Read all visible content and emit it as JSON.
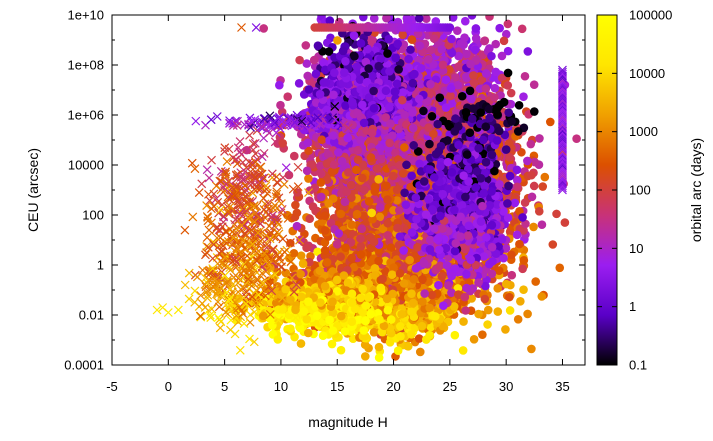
{
  "chart_data": {
    "type": "scatter",
    "title": "",
    "xlabel": "magnitude H",
    "ylabel": "CEU (arcsec)",
    "xlim": [
      -5,
      37
    ],
    "ylim_log10": [
      -4,
      10
    ],
    "y_scale": "log",
    "x_ticks": [
      "-5",
      "0",
      "5",
      "10",
      "15",
      "20",
      "25",
      "30",
      "35"
    ],
    "x_tick_values": [
      -5,
      0,
      5,
      10,
      15,
      20,
      25,
      30,
      35
    ],
    "y_ticks": [
      "0.0001",
      "0.01",
      "1",
      "100",
      "10000",
      "1e+06",
      "1e+08",
      "1e+10"
    ],
    "y_tick_values_log10": [
      -4,
      -2,
      0,
      2,
      4,
      6,
      8,
      10
    ],
    "grid": false,
    "colorbar": {
      "label": "orbital arc (days)",
      "scale": "log",
      "range_log10": [
        -1,
        5
      ],
      "ticks": [
        "0.1",
        "1",
        "10",
        "100",
        "1000",
        "10000",
        "100000"
      ],
      "tick_values_log10": [
        -1,
        0,
        1,
        2,
        3,
        4,
        5
      ],
      "palette": [
        "#000000",
        "#5a00c8",
        "#9b1ef0",
        "#c83278",
        "#dc5000",
        "#f0a000",
        "#ffe600",
        "#ffff00"
      ]
    },
    "series": [
      {
        "marker": "circle",
        "clusters": [
          {
            "x": 22.0,
            "y_log10": 4.2,
            "sx": 4.0,
            "sy": 2.5,
            "arc_log10": 1.8,
            "count": 5000
          },
          {
            "x": 17.5,
            "y_log10": 6.2,
            "sx": 2.0,
            "sy": 1.2,
            "arc_log10": 0.6,
            "count": 1500
          },
          {
            "x": 22.0,
            "y_log10": 1.5,
            "sx": 3.5,
            "sy": 1.6,
            "arc_log10": 2.3,
            "count": 2000
          },
          {
            "x": 18.5,
            "y_log10": -1.0,
            "sx": 3.0,
            "sy": 0.8,
            "arc_log10": 3.0,
            "count": 2000
          },
          {
            "x": 13.0,
            "y_log10": -1.6,
            "sx": 2.5,
            "sy": 0.5,
            "arc_log10": 4.0,
            "count": 600
          },
          {
            "x": 26.0,
            "y_log10": 2.0,
            "sx": 2.0,
            "sy": 1.3,
            "arc_log10": 0.4,
            "count": 800
          },
          {
            "x": 28.0,
            "y_log10": 5.7,
            "sx": 1.8,
            "sy": 0.6,
            "arc_log10": -0.8,
            "count": 80
          }
        ],
        "rows": [
          {
            "y_log10": 9.5,
            "x_min": 13,
            "x_max": 25,
            "arc_log10_min": 2.0,
            "arc_log10_max": 0.3,
            "count": 60
          }
        ],
        "columns": [
          {
            "x": 35,
            "y_log10_min": 3.0,
            "y_log10_max": 7.8,
            "arc_log10": 0.5,
            "count": 60
          }
        ]
      },
      {
        "marker": "x",
        "clusters": [
          {
            "x": 7.0,
            "y_log10": 1.0,
            "sx": 1.8,
            "sy": 1.5,
            "arc_log10": 2.6,
            "count": 400
          },
          {
            "x": 5.0,
            "y_log10": -1.0,
            "sx": 1.5,
            "sy": 0.7,
            "arc_log10": 3.3,
            "count": 120
          },
          {
            "x": 7.0,
            "y_log10": 3.5,
            "sx": 2.0,
            "sy": 0.8,
            "arc_log10": 2.2,
            "count": 100
          },
          {
            "x": 10.0,
            "y_log10": 5.7,
            "sx": 2.5,
            "sy": 0.15,
            "arc_log10": 0.6,
            "count": 120
          }
        ],
        "points": [
          {
            "x": -1,
            "y_log10": -1.8,
            "arc_log10": 4.2
          },
          {
            "x": -0.5,
            "y_log10": -1.7,
            "arc_log10": 4.1
          },
          {
            "x": 0,
            "y_log10": -1.9,
            "arc_log10": 4.3
          },
          {
            "x": 1.5,
            "y_log10": -0.8,
            "arc_log10": 3.6
          },
          {
            "x": 6.5,
            "y_log10": 9.5,
            "arc_log10": 2.5
          },
          {
            "x": 7.8,
            "y_log10": 9.5,
            "arc_log10": 0.4
          },
          {
            "x": 3.5,
            "y_log10": 1.9,
            "arc_log10": 2.8
          }
        ]
      }
    ]
  }
}
